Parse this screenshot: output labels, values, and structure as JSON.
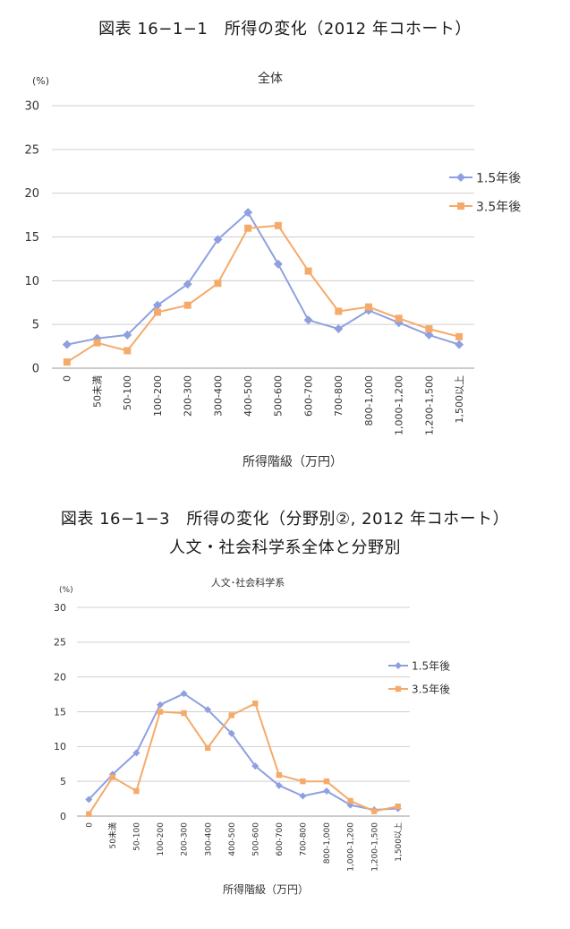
{
  "headings": {
    "figure1": "図表 16−1−1　所得の変化（2012 年コホート）",
    "figure2": "図表 16−1−3　所得の変化（分野別②, 2012 年コホート）",
    "figure2_sub": "人文・社会科学系全体と分野別"
  },
  "chart_data": [
    {
      "type": "line",
      "title": "全体",
      "ylabel": "(%)",
      "xlabel": "所得階級（万円）",
      "ylim": [
        0,
        30
      ],
      "yticks": [
        0,
        5,
        10,
        15,
        20,
        25,
        30
      ],
      "grid": true,
      "legend": "right",
      "categories": [
        "0",
        "50未満",
        "50-100",
        "100-200",
        "200-300",
        "300-400",
        "400-500",
        "500-600",
        "600-700",
        "700-800",
        "800-1,000",
        "1,000-1,200",
        "1,200-1,500",
        "1,500以上"
      ],
      "series": [
        {
          "name": "1.5年後",
          "color": "#8fa0e0",
          "marker": "diamond",
          "values": [
            2.7,
            3.4,
            3.8,
            7.2,
            9.6,
            14.7,
            17.8,
            11.9,
            5.5,
            4.5,
            6.6,
            5.2,
            3.8,
            2.7
          ]
        },
        {
          "name": "3.5年後",
          "color": "#f5aa6a",
          "marker": "square",
          "values": [
            0.7,
            2.9,
            2.0,
            6.4,
            7.2,
            9.7,
            16.0,
            16.3,
            11.1,
            6.5,
            7.0,
            5.7,
            4.5,
            3.6
          ]
        }
      ]
    },
    {
      "type": "line",
      "title": "人文･社会科学系",
      "ylabel": "(%)",
      "xlabel": "所得階級（万円）",
      "ylim": [
        0,
        30
      ],
      "yticks": [
        0,
        5,
        10,
        15,
        20,
        25,
        30
      ],
      "grid": true,
      "legend": "right",
      "categories": [
        "0",
        "50未満",
        "50-100",
        "100-200",
        "200-300",
        "300-400",
        "400-500",
        "500-600",
        "600-700",
        "700-800",
        "800-1,000",
        "1,000-1,200",
        "1,200-1,500",
        "1,500以上"
      ],
      "series": [
        {
          "name": "1.5年後",
          "color": "#8fa0e0",
          "marker": "diamond",
          "values": [
            2.4,
            6.0,
            9.1,
            16.0,
            17.6,
            15.3,
            11.9,
            7.2,
            4.4,
            2.9,
            3.6,
            1.6,
            0.9,
            1.1
          ]
        },
        {
          "name": "3.5年後",
          "color": "#f5aa6a",
          "marker": "square",
          "values": [
            0.3,
            5.6,
            3.6,
            15.0,
            14.8,
            9.8,
            14.5,
            16.2,
            5.9,
            5.0,
            5.0,
            2.2,
            0.7,
            1.4
          ]
        }
      ]
    }
  ]
}
